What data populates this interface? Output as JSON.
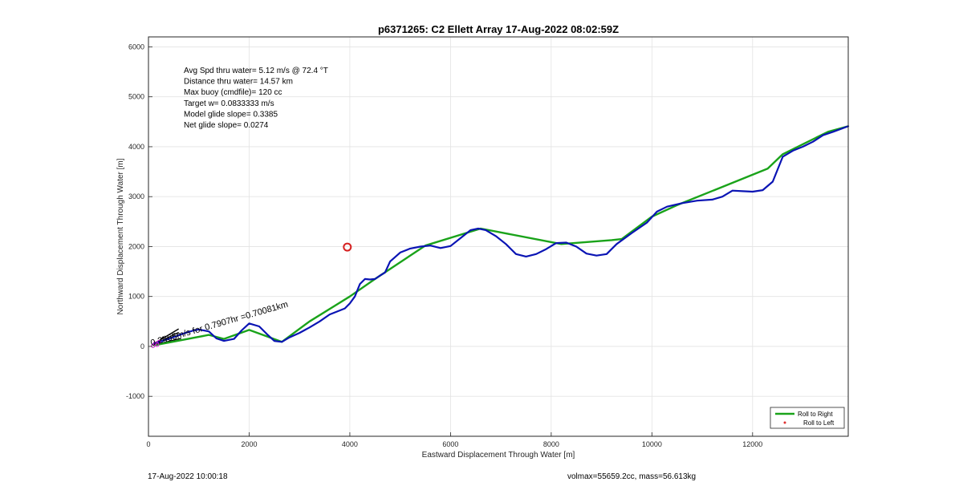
{
  "chart_data": {
    "type": "line",
    "title": "p6371265: C2 Ellett Array 17-Aug-2022 08:02:59Z",
    "xlabel": "Eastward Displacement Through Water [m]",
    "ylabel": "Northward Displacement Through Water [m]",
    "xlim": [
      0,
      13900
    ],
    "ylim": [
      -1800,
      6200
    ],
    "xticks": [
      0,
      2000,
      4000,
      6000,
      8000,
      10000,
      12000
    ],
    "yticks": [
      -1000,
      0,
      1000,
      2000,
      3000,
      4000,
      5000,
      6000
    ],
    "grid": true,
    "legend_position": "bottom-right",
    "annotations": [
      "Avg Spd thru water=  5.12 m/s @  72.4 °T",
      "Distance thru water= 14.57 km",
      "Max buoy (cmdfile)= 120 cc",
      "Target w= 0.0833333 m/s",
      "Model glide slope= 0.3385",
      "Net glide slope= 0.0274"
    ],
    "segment_label": "0.2465m/s for 0.7907hr =0.70081km",
    "marker": {
      "x": 3950,
      "y": 1990,
      "color": "#d62020"
    },
    "series": [
      {
        "name": "Roll to Right",
        "color": "#1aa31a",
        "style": "line",
        "x": [
          100,
          1200,
          1500,
          2000,
          2650,
          3200,
          4000,
          4500,
          5500,
          6600,
          8200,
          9200,
          9400,
          10000,
          10500,
          12300,
          12600,
          13000,
          13500,
          13900
        ],
        "y": [
          20,
          230,
          150,
          330,
          90,
          500,
          1000,
          1350,
          2020,
          2360,
          2050,
          2130,
          2150,
          2600,
          2830,
          3560,
          3850,
          4050,
          4300,
          4410
        ]
      },
      {
        "name": "Roll to Left",
        "color": "#e03030",
        "style": "dots",
        "x": [],
        "y": []
      },
      {
        "name": "",
        "color": "#0a14b4",
        "style": "line",
        "x": [
          100,
          400,
          700,
          900,
          1000,
          1200,
          1350,
          1500,
          1700,
          1850,
          2000,
          2200,
          2350,
          2500,
          2650,
          2800,
          3000,
          3200,
          3400,
          3600,
          3750,
          3900,
          4000,
          4100,
          4200,
          4300,
          4400,
          4500,
          4600,
          4700,
          4800,
          5000,
          5200,
          5400,
          5600,
          5800,
          6000,
          6200,
          6400,
          6550,
          6700,
          6900,
          7100,
          7300,
          7500,
          7700,
          7900,
          8100,
          8300,
          8500,
          8700,
          8900,
          9100,
          9300,
          9600,
          9900,
          10100,
          10300,
          10600,
          10900,
          11200,
          11400,
          11600,
          11800,
          12000,
          12200,
          12400,
          12600,
          12800,
          13000,
          13200,
          13400,
          13600,
          13900
        ],
        "y": [
          50,
          150,
          260,
          320,
          340,
          300,
          160,
          110,
          150,
          320,
          460,
          400,
          250,
          110,
          90,
          180,
          270,
          380,
          500,
          640,
          700,
          760,
          860,
          1000,
          1250,
          1350,
          1340,
          1350,
          1420,
          1480,
          1700,
          1880,
          1960,
          2000,
          2020,
          1970,
          2010,
          2170,
          2330,
          2360,
          2330,
          2210,
          2050,
          1850,
          1800,
          1850,
          1950,
          2070,
          2080,
          2000,
          1860,
          1820,
          1850,
          2050,
          2270,
          2480,
          2700,
          2800,
          2870,
          2920,
          2940,
          3000,
          3120,
          3110,
          3100,
          3130,
          3300,
          3800,
          3920,
          4000,
          4100,
          4230,
          4300,
          4410
        ]
      }
    ]
  },
  "footer": {
    "timestamp": "17-Aug-2022 10:00:18",
    "vol_mass": "volmax=55659.2cc, mass=56.613kg"
  }
}
